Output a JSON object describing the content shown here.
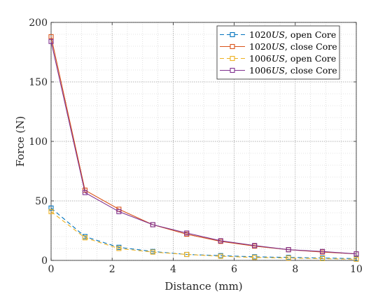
{
  "chart_data": {
    "type": "line",
    "xlabel": "Distance (mm)",
    "ylabel": "Force (N)",
    "xlim": [
      0,
      10
    ],
    "ylim": [
      0,
      200
    ],
    "xticks": [
      "0",
      "2",
      "4",
      "6",
      "8",
      "10"
    ],
    "yticks": [
      "0",
      "50",
      "100",
      "150",
      "200"
    ],
    "grid": "major and minor, dotted",
    "legend_position": "top-right",
    "x": [
      0,
      1.111,
      2.222,
      3.333,
      4.444,
      5.556,
      6.667,
      7.778,
      8.889,
      10
    ],
    "series": [
      {
        "name": "1020US, open Core",
        "name_italic_part": "US",
        "color": "#0072BD",
        "line_style": "dashed",
        "marker": "square",
        "values": [
          44,
          20,
          11,
          7.5,
          5,
          4,
          3,
          2.5,
          2,
          1.5
        ]
      },
      {
        "name": "1020US, close Core",
        "name_italic_part": "US",
        "color": "#D95319",
        "line_style": "solid",
        "marker": "square",
        "values": [
          188,
          59,
          43,
          30,
          22,
          16,
          12,
          9,
          7,
          5.5
        ]
      },
      {
        "name": "1006US, open Core",
        "name_italic_part": "US",
        "color": "#EDB120",
        "line_style": "dashed",
        "marker": "square",
        "values": [
          41,
          19,
          10,
          7,
          5,
          3.5,
          2.5,
          2,
          1.5,
          1
        ]
      },
      {
        "name": "1006US, close Core",
        "name_italic_part": "US",
        "color": "#7E2F8E",
        "line_style": "solid",
        "marker": "square",
        "values": [
          184,
          57,
          41,
          30,
          23,
          16.5,
          12.5,
          9,
          7.5,
          5.5
        ]
      }
    ]
  }
}
